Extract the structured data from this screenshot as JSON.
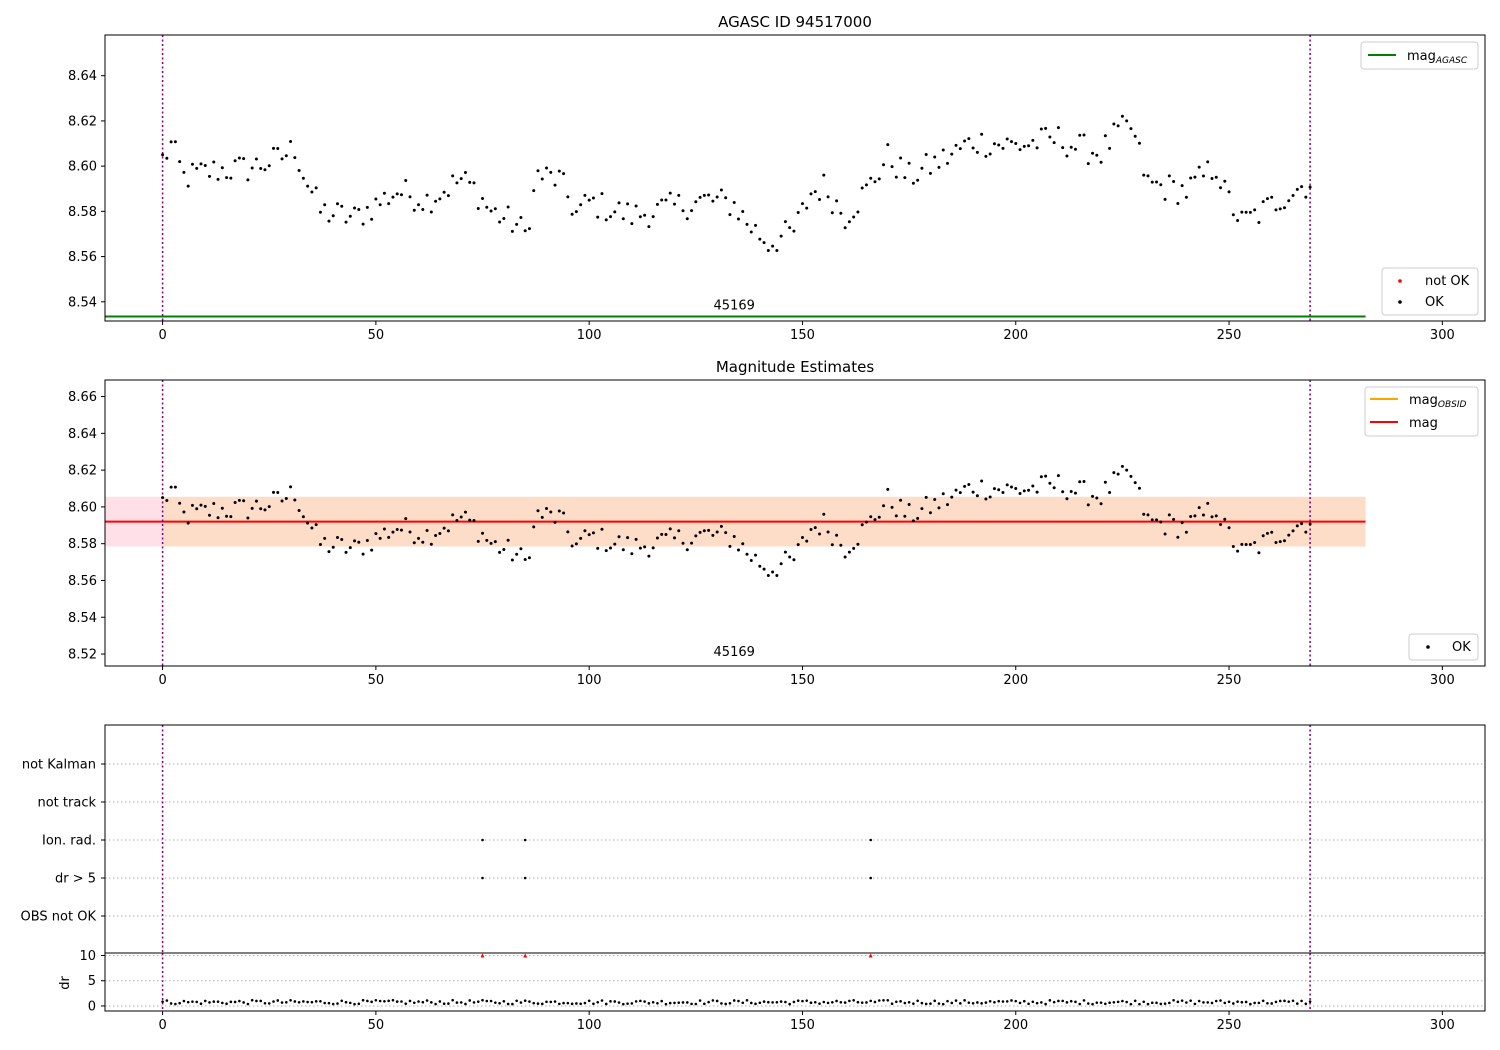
{
  "chart_data": [
    {
      "id": "p1",
      "type": "scatter",
      "title": "AGASC ID 94517000",
      "xlim": [
        -13.5,
        310
      ],
      "ylim": [
        8.5315,
        8.658
      ],
      "xticks": [
        0,
        50,
        100,
        150,
        200,
        250,
        300
      ],
      "xtick_labels": [
        "0",
        "50",
        "100",
        "150",
        "200",
        "250",
        "300"
      ],
      "yticks": [
        8.54,
        8.56,
        8.58,
        8.6,
        8.62,
        8.64
      ],
      "ytick_labels": [
        "8.54",
        "8.56",
        "8.58",
        "8.60",
        "8.62",
        "8.64"
      ],
      "vlines": [
        0,
        269
      ],
      "hline": {
        "y": 8.5335,
        "x0": -13.5,
        "x1": 282,
        "color": "#008000"
      },
      "annotation": {
        "text": "45169",
        "x": 134,
        "y": 8.5365
      },
      "legend_top": [
        {
          "label": "mag",
          "sub": "AGASC",
          "color": "#008000"
        }
      ],
      "legend_bottom": [
        {
          "label": "not OK",
          "color": "#ff0000"
        },
        {
          "label": "OK",
          "color": "#000000"
        }
      ]
    },
    {
      "id": "p2",
      "type": "scatter",
      "title": "Magnitude Estimates",
      "xlim": [
        -13.5,
        310
      ],
      "ylim": [
        8.5135,
        8.669
      ],
      "xticks": [
        0,
        50,
        100,
        150,
        200,
        250,
        300
      ],
      "xtick_labels": [
        "0",
        "50",
        "100",
        "150",
        "200",
        "250",
        "300"
      ],
      "yticks": [
        8.52,
        8.54,
        8.56,
        8.58,
        8.6,
        8.62,
        8.64,
        8.66
      ],
      "ytick_labels": [
        "8.52",
        "8.54",
        "8.56",
        "8.58",
        "8.60",
        "8.62",
        "8.64",
        "8.66"
      ],
      "vlines": [
        0,
        269
      ],
      "mag": 8.592,
      "band": [
        8.5785,
        8.6055
      ],
      "band_x": [
        -13.5,
        282
      ],
      "annotation": {
        "text": "45169",
        "x": 134,
        "y": 8.519
      },
      "legend_top": [
        {
          "label": "mag",
          "sub": "OBSID",
          "color": "#ffa500"
        },
        {
          "label": "mag",
          "sub": "",
          "color": "#ff0000"
        }
      ],
      "legend_bottom": [
        {
          "label": "OK",
          "color": "#000000"
        }
      ]
    },
    {
      "id": "p3",
      "type": "scatter",
      "xlim": [
        -13.5,
        310
      ],
      "xticks": [
        0,
        50,
        100,
        150,
        200,
        250,
        300
      ],
      "xtick_labels": [
        "0",
        "50",
        "100",
        "150",
        "200",
        "250",
        "300"
      ],
      "vlines": [
        0,
        269
      ],
      "flag_labels": [
        "not Kalman",
        "not track",
        "Ion. rad.",
        "dr > 5",
        "OBS not OK"
      ],
      "flag_points": {
        "Ion. rad.": [
          75,
          85,
          166
        ],
        "dr > 5": [
          75,
          85,
          166
        ]
      },
      "dr_ylabel": "dr",
      "dr_yticks": [
        0,
        5,
        10
      ],
      "dr_ytick_labels": [
        "0",
        "5",
        "10"
      ],
      "dr_ylim": [
        -1,
        10.5
      ],
      "dr_high_points": [
        75,
        85,
        166
      ]
    }
  ]
}
